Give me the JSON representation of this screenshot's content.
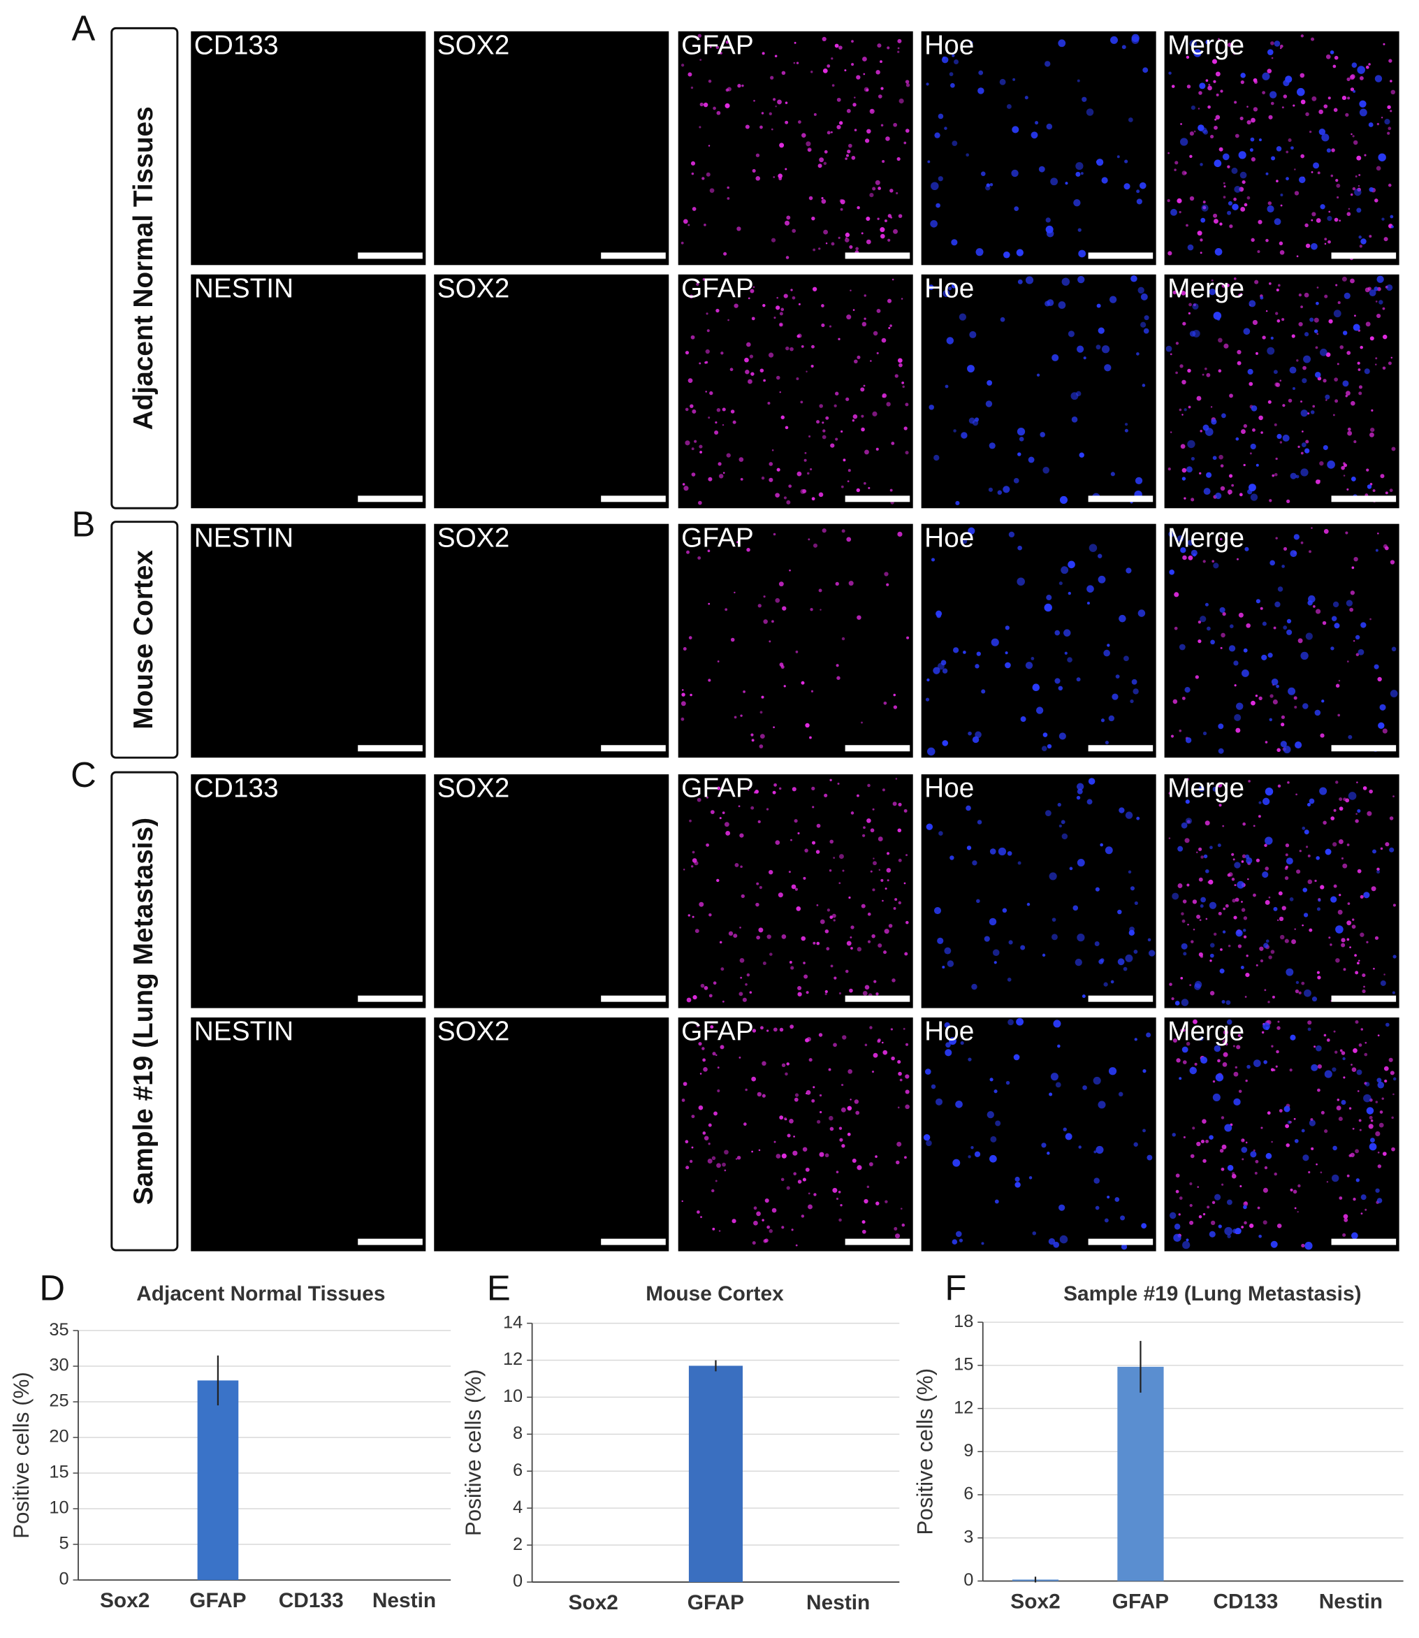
{
  "sections": [
    {
      "letter": "A",
      "label": "Adjacent Normal Tissues",
      "rows": [
        [
          "CD133",
          "SOX2",
          "GFAP",
          "Hoe",
          "Merge"
        ],
        [
          "NESTIN",
          "SOX2",
          "GFAP",
          "Hoe",
          "Merge"
        ]
      ]
    },
    {
      "letter": "B",
      "label": "Mouse Cortex",
      "rows": [
        [
          "NESTIN",
          "SOX2",
          "GFAP",
          "Hoe",
          "Merge"
        ]
      ]
    },
    {
      "letter": "C",
      "label": "Sample #19 (Lung Metastasis)",
      "rows": [
        [
          "CD133",
          "SOX2",
          "GFAP",
          "Hoe",
          "Merge"
        ],
        [
          "NESTIN",
          "SOX2",
          "GFAP",
          "Hoe",
          "Merge"
        ]
      ]
    }
  ],
  "chart_data": [
    {
      "type": "bar",
      "letter": "D",
      "title": "Adjacent Normal Tissues",
      "y_label": "Positive cells (%)",
      "categories": [
        "Sox2",
        "GFAP",
        "CD133",
        "Nestin"
      ],
      "values": [
        0,
        28,
        0,
        0
      ],
      "errors": [
        0,
        3.5,
        0,
        0
      ],
      "color": "#3a73c8",
      "ylim": [
        0,
        35
      ],
      "yticks": [
        0,
        5,
        10,
        15,
        20,
        25,
        30,
        35
      ],
      "grid": true
    },
    {
      "type": "bar",
      "letter": "E",
      "title": "Mouse Cortex",
      "y_label": "Positive cells (%)",
      "categories": [
        "Sox2",
        "GFAP",
        "Nestin"
      ],
      "values": [
        0,
        11.7,
        0
      ],
      "errors": [
        0,
        0.3,
        0
      ],
      "color": "#3a6fc0",
      "ylim": [
        0,
        14
      ],
      "yticks": [
        0,
        2,
        4,
        6,
        8,
        10,
        12,
        14
      ],
      "grid": true
    },
    {
      "type": "bar",
      "letter": "F",
      "title": "Sample #19 (Lung Metastasis)",
      "y_label": "Positive cells (%)",
      "categories": [
        "Sox2",
        "GFAP",
        "CD133",
        "Nestin"
      ],
      "values": [
        0.1,
        14.9,
        0,
        0
      ],
      "errors": [
        0.2,
        1.8,
        0,
        0
      ],
      "color": "#5a8ed0",
      "ylim": [
        0,
        18
      ],
      "yticks": [
        0,
        3,
        6,
        9,
        12,
        15,
        18
      ],
      "grid": true
    }
  ]
}
